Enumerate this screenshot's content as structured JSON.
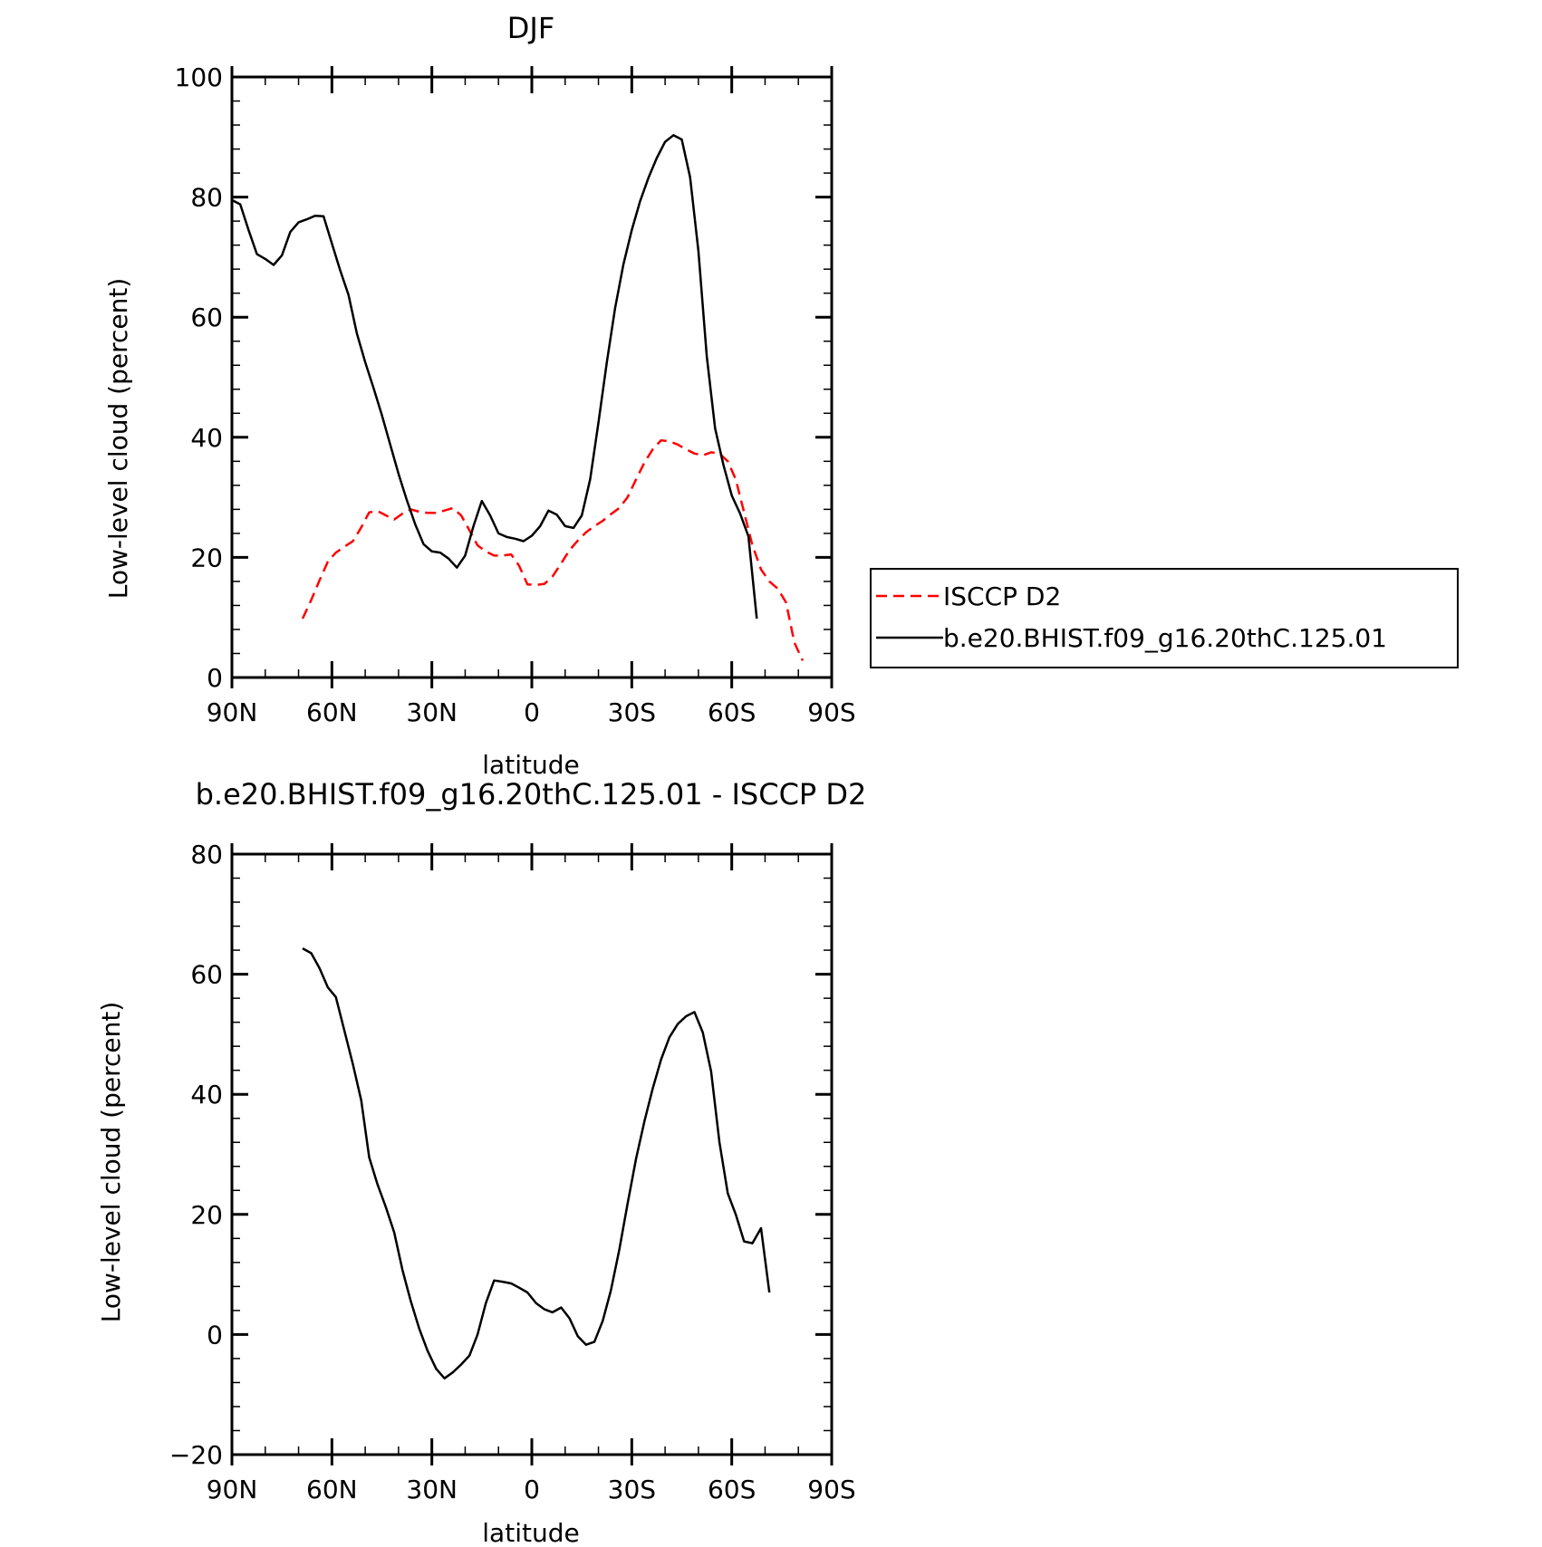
{
  "chart_data": [
    {
      "type": "line",
      "title": "DJF",
      "xlabel": "latitude",
      "ylabel": "Low-level cloud (percent)",
      "xlim": [
        90,
        -90
      ],
      "ylim": [
        0,
        100
      ],
      "x_ticks": [
        90,
        60,
        30,
        0,
        -30,
        -60,
        -90
      ],
      "x_tick_labels": [
        "90N",
        "60N",
        "30N",
        "0",
        "30S",
        "60S",
        "90S"
      ],
      "y_ticks": [
        0,
        20,
        40,
        60,
        80,
        100
      ],
      "y_tick_labels": [
        "0",
        "20",
        "40",
        "60",
        "80",
        "100"
      ],
      "grid": false,
      "legend": {
        "placement": "right",
        "entries": [
          "ISCCP D2",
          "b.e20.BHIST.f09_g16.20thC.125.01"
        ]
      },
      "series": [
        {
          "name": "ISCCP D2",
          "color": "#ff0000",
          "style": "dashed",
          "points": [
            [
              68.8,
              9.8
            ],
            [
              66.2,
              12.9
            ],
            [
              63.7,
              16.2
            ],
            [
              61.2,
              19.3
            ],
            [
              58.8,
              20.8
            ],
            [
              56.2,
              21.8
            ],
            [
              53.7,
              22.7
            ],
            [
              51.2,
              25.0
            ],
            [
              48.8,
              27.5
            ],
            [
              46.3,
              27.7
            ],
            [
              43.8,
              27.0
            ],
            [
              41.3,
              26.3
            ],
            [
              38.8,
              27.3
            ],
            [
              36.3,
              28.0
            ],
            [
              33.8,
              27.6
            ],
            [
              31.3,
              27.4
            ],
            [
              28.7,
              27.4
            ],
            [
              26.2,
              27.8
            ],
            [
              23.7,
              28.2
            ],
            [
              21.2,
              27.0
            ],
            [
              18.7,
              24.5
            ],
            [
              16.3,
              22.0
            ],
            [
              13.8,
              21.0
            ],
            [
              11.3,
              20.3
            ],
            [
              8.8,
              20.3
            ],
            [
              6.2,
              20.5
            ],
            [
              3.8,
              18.6
            ],
            [
              1.3,
              15.5
            ],
            [
              -1.3,
              15.4
            ],
            [
              -3.8,
              15.6
            ],
            [
              -6.2,
              16.8
            ],
            [
              -8.8,
              19.0
            ],
            [
              -11.3,
              21.2
            ],
            [
              -13.8,
              22.8
            ],
            [
              -16.3,
              24.2
            ],
            [
              -18.8,
              25.2
            ],
            [
              -21.3,
              26.1
            ],
            [
              -23.7,
              27.2
            ],
            [
              -26.2,
              28.2
            ],
            [
              -28.7,
              30.0
            ],
            [
              -31.3,
              33.0
            ],
            [
              -33.8,
              35.8
            ],
            [
              -36.3,
              38.0
            ],
            [
              -38.8,
              39.5
            ],
            [
              -41.3,
              39.3
            ],
            [
              -43.8,
              38.8
            ],
            [
              -46.3,
              38.0
            ],
            [
              -48.8,
              37.3
            ],
            [
              -51.3,
              37.0
            ],
            [
              -53.8,
              37.5
            ],
            [
              -56.3,
              37.3
            ],
            [
              -58.8,
              36.0
            ],
            [
              -61.2,
              33.0
            ],
            [
              -63.7,
              27.5
            ],
            [
              -66.2,
              22.0
            ],
            [
              -68.8,
              18.0
            ],
            [
              -71.3,
              16.0
            ],
            [
              -73.8,
              14.8
            ],
            [
              -76.3,
              12.5
            ],
            [
              -78.8,
              5.8
            ],
            [
              -81.3,
              2.8
            ]
          ]
        },
        {
          "name": "b.e20.BHIST.f09_g16.20thC.125.01",
          "color": "#000000",
          "style": "solid",
          "points": [
            [
              90,
              79.5
            ],
            [
              87.5,
              78.8
            ],
            [
              85.0,
              74.5
            ],
            [
              82.5,
              70.5
            ],
            [
              80.0,
              69.7
            ],
            [
              77.5,
              68.7
            ],
            [
              75.0,
              70.3
            ],
            [
              72.5,
              74.2
            ],
            [
              70.0,
              75.8
            ],
            [
              67.5,
              76.3
            ],
            [
              65.0,
              76.9
            ],
            [
              62.5,
              76.8
            ],
            [
              60.0,
              72.3
            ],
            [
              57.5,
              67.8
            ],
            [
              55.0,
              63.7
            ],
            [
              52.5,
              57.3
            ],
            [
              50.0,
              52.5
            ],
            [
              47.5,
              48.2
            ],
            [
              45.0,
              43.7
            ],
            [
              42.5,
              38.8
            ],
            [
              40.0,
              33.9
            ],
            [
              37.5,
              29.5
            ],
            [
              35.0,
              25.5
            ],
            [
              32.5,
              22.2
            ],
            [
              30.0,
              21.0
            ],
            [
              27.5,
              20.8
            ],
            [
              25.0,
              19.8
            ],
            [
              22.5,
              18.3
            ],
            [
              20.0,
              20.3
            ],
            [
              17.5,
              25.2
            ],
            [
              15.0,
              29.4
            ],
            [
              12.5,
              27.0
            ],
            [
              10.0,
              24.0
            ],
            [
              7.5,
              23.4
            ],
            [
              5.0,
              23.1
            ],
            [
              2.5,
              22.7
            ],
            [
              0.0,
              23.6
            ],
            [
              -2.5,
              25.2
            ],
            [
              -5.0,
              27.8
            ],
            [
              -7.5,
              27.1
            ],
            [
              -10.0,
              25.2
            ],
            [
              -12.5,
              24.9
            ],
            [
              -15.0,
              27.0
            ],
            [
              -17.5,
              33.0
            ],
            [
              -20.0,
              42.5
            ],
            [
              -22.5,
              52.5
            ],
            [
              -25.0,
              61.5
            ],
            [
              -27.5,
              68.8
            ],
            [
              -30.0,
              74.5
            ],
            [
              -32.5,
              79.3
            ],
            [
              -35.0,
              83.2
            ],
            [
              -37.5,
              86.5
            ],
            [
              -40.0,
              89.2
            ],
            [
              -42.5,
              90.3
            ],
            [
              -45.0,
              89.6
            ],
            [
              -47.5,
              83.3
            ],
            [
              -50.0,
              71.0
            ],
            [
              -52.5,
              53.5
            ],
            [
              -55.0,
              41.5
            ],
            [
              -57.5,
              35.4
            ],
            [
              -60.0,
              30.3
            ],
            [
              -62.5,
              27.3
            ],
            [
              -65.0,
              23.5
            ],
            [
              -67.5,
              9.8
            ]
          ]
        }
      ]
    },
    {
      "type": "line",
      "title": "b.e20.BHIST.f09_g16.20thC.125.01 - ISCCP D2",
      "xlabel": "latitude",
      "ylabel": "Low-level cloud (percent)",
      "xlim": [
        90,
        -90
      ],
      "ylim": [
        -20,
        80
      ],
      "x_ticks": [
        90,
        60,
        30,
        0,
        -30,
        -60,
        -90
      ],
      "x_tick_labels": [
        "90N",
        "60N",
        "30N",
        "0",
        "30S",
        "60S",
        "90S"
      ],
      "y_ticks": [
        -20,
        0,
        20,
        40,
        60,
        80
      ],
      "y_tick_labels": [
        "−20",
        "0",
        "20",
        "40",
        "60",
        "80"
      ],
      "grid": false,
      "series": [
        {
          "color": "#000000",
          "style": "solid",
          "points": [
            [
              68.8,
              64.3
            ],
            [
              66.2,
              63.5
            ],
            [
              63.7,
              61.0
            ],
            [
              61.2,
              57.8
            ],
            [
              58.8,
              56.2
            ],
            [
              56.2,
              50.5
            ],
            [
              53.7,
              45.0
            ],
            [
              51.2,
              39.0
            ],
            [
              48.8,
              29.5
            ],
            [
              46.3,
              25.0
            ],
            [
              43.8,
              21.2
            ],
            [
              41.3,
              17.0
            ],
            [
              38.8,
              10.7
            ],
            [
              36.3,
              5.5
            ],
            [
              33.8,
              1.0
            ],
            [
              31.3,
              -2.7
            ],
            [
              28.7,
              -5.7
            ],
            [
              26.2,
              -7.3
            ],
            [
              23.7,
              -6.3
            ],
            [
              21.2,
              -5.0
            ],
            [
              18.7,
              -3.5
            ],
            [
              16.3,
              0.0
            ],
            [
              13.8,
              5.2
            ],
            [
              11.3,
              9.0
            ],
            [
              8.8,
              8.8
            ],
            [
              6.2,
              8.5
            ],
            [
              3.8,
              7.8
            ],
            [
              1.3,
              7.0
            ],
            [
              -1.3,
              5.2
            ],
            [
              -3.8,
              4.2
            ],
            [
              -6.2,
              3.7
            ],
            [
              -8.8,
              4.5
            ],
            [
              -11.3,
              2.7
            ],
            [
              -13.8,
              -0.3
            ],
            [
              -16.3,
              -1.7
            ],
            [
              -18.8,
              -1.2
            ],
            [
              -21.3,
              2.3
            ],
            [
              -23.7,
              7.3
            ],
            [
              -26.2,
              14.0
            ],
            [
              -28.7,
              21.7
            ],
            [
              -31.3,
              29.3
            ],
            [
              -33.8,
              35.5
            ],
            [
              -36.3,
              41.0
            ],
            [
              -38.8,
              45.8
            ],
            [
              -41.3,
              49.5
            ],
            [
              -43.8,
              51.7
            ],
            [
              -46.3,
              53.0
            ],
            [
              -48.8,
              53.7
            ],
            [
              -51.3,
              50.3
            ],
            [
              -53.8,
              43.8
            ],
            [
              -56.3,
              32.0
            ],
            [
              -58.8,
              23.5
            ],
            [
              -61.2,
              20.0
            ],
            [
              -63.7,
              15.5
            ],
            [
              -66.2,
              15.2
            ],
            [
              -68.8,
              17.7
            ],
            [
              -71.3,
              7.0
            ]
          ]
        }
      ]
    }
  ]
}
